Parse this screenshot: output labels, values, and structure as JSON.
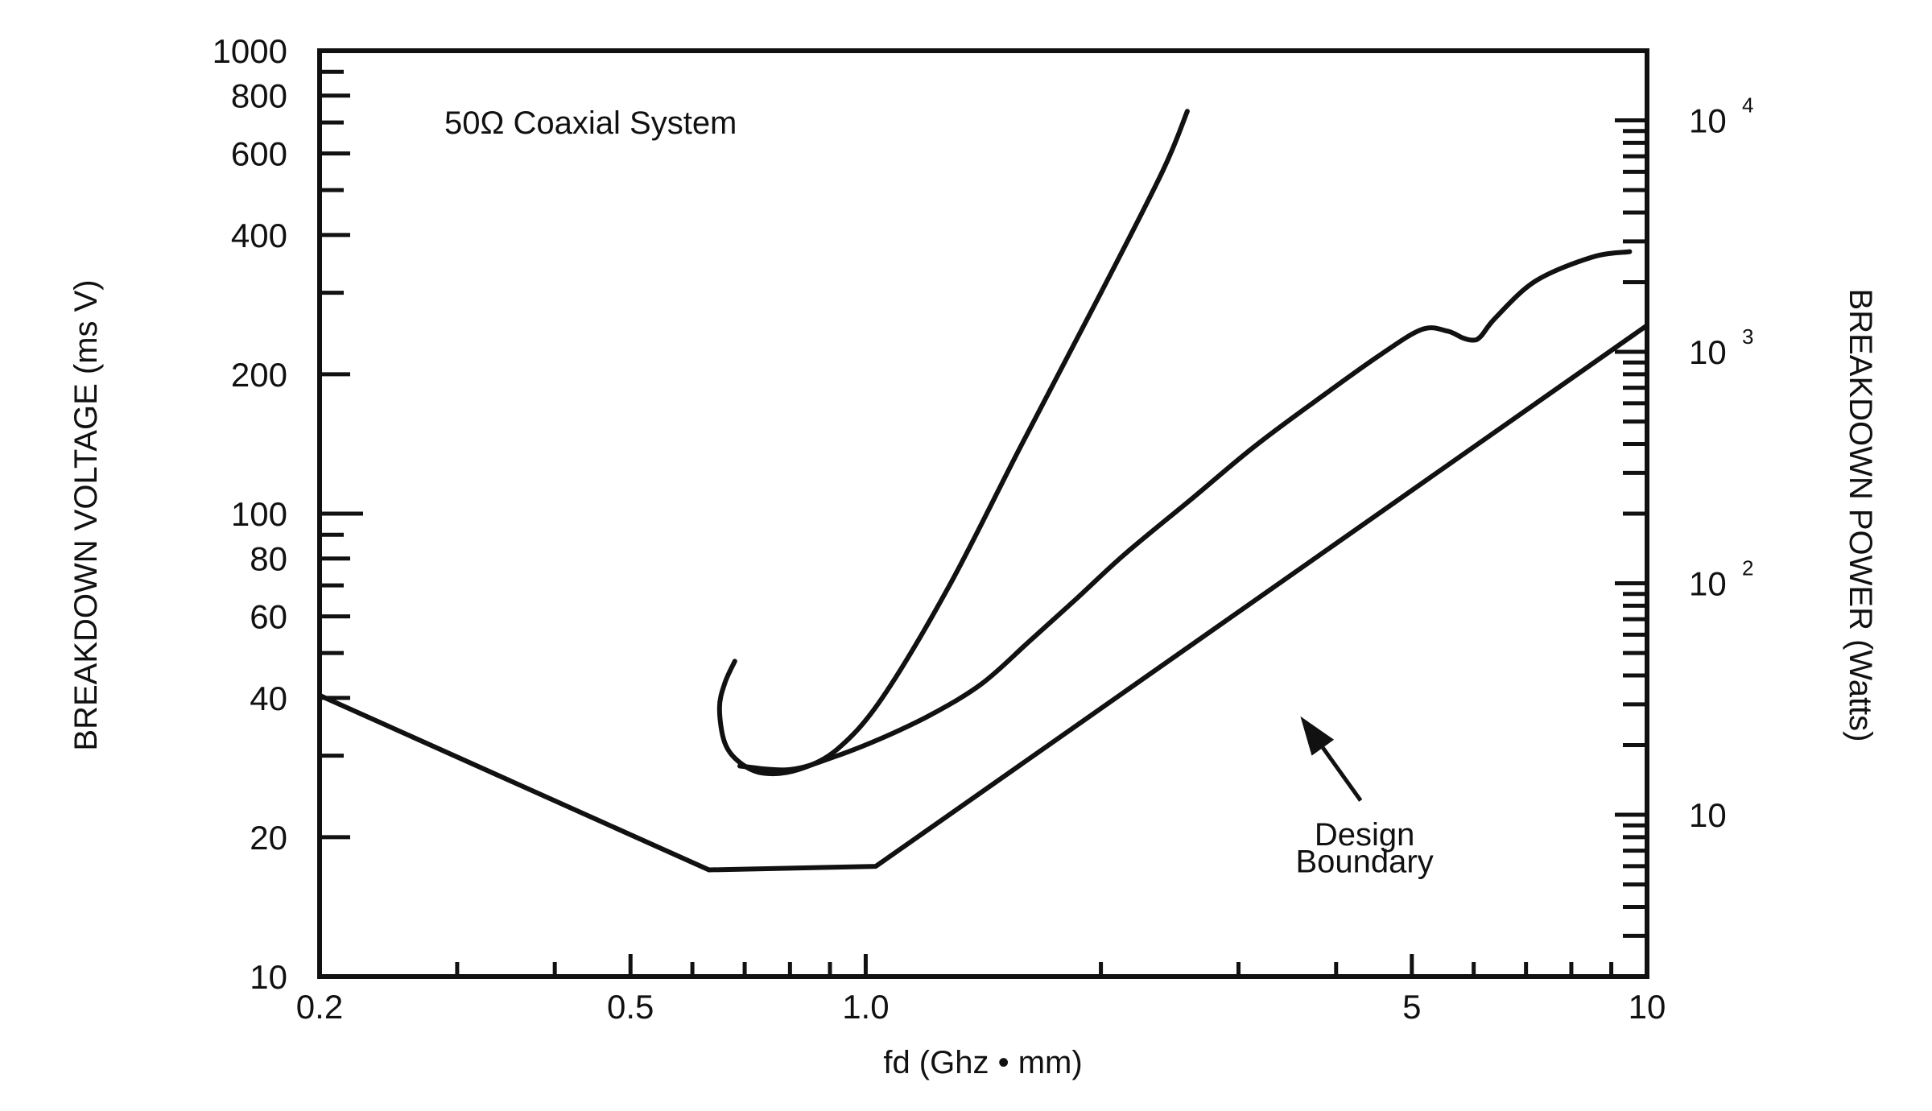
{
  "chart_data": {
    "type": "line",
    "title": "",
    "annotation": "50Ω  Coaxial System",
    "xlabel": "fd (Ghz • mm)",
    "ylabel": "BREAKDOWN VOLTAGE (ms V)",
    "y2label": "BREAKDOWN POWER (Watts)",
    "xscale": "log",
    "yscale": "log",
    "y2scale": "log",
    "xlim": [
      0.2,
      10
    ],
    "ylim": [
      10,
      1000
    ],
    "y2lim": [
      2,
      20000
    ],
    "x_ticks": [
      {
        "value": 0.2,
        "label": "0.2"
      },
      {
        "value": 0.5,
        "label": "0.5"
      },
      {
        "value": 1.0,
        "label": "1.0"
      },
      {
        "value": 5,
        "label": "5"
      },
      {
        "value": 10,
        "label": "10"
      }
    ],
    "x_minor_ticks": [
      0.3,
      0.4,
      0.6,
      0.7,
      0.8,
      0.9,
      2,
      3,
      4,
      6,
      7,
      8,
      9
    ],
    "y_ticks": [
      {
        "value": 10,
        "label": "10"
      },
      {
        "value": 20,
        "label": "20"
      },
      {
        "value": 40,
        "label": "40"
      },
      {
        "value": 60,
        "label": "60"
      },
      {
        "value": 80,
        "label": "80"
      },
      {
        "value": 100,
        "label": "100"
      },
      {
        "value": 200,
        "label": "200"
      },
      {
        "value": 400,
        "label": "400"
      },
      {
        "value": 600,
        "label": "600"
      },
      {
        "value": 800,
        "label": "800"
      },
      {
        "value": 1000,
        "label": "1000"
      }
    ],
    "y_minor_ticks": [
      30,
      50,
      70,
      90,
      300,
      500,
      700,
      900
    ],
    "y2_ticks": [
      {
        "value": 10,
        "base": "10",
        "exp": ""
      },
      {
        "value": 100,
        "base": "10",
        "exp": "2"
      },
      {
        "value": 1000,
        "base": "10",
        "exp": "3"
      },
      {
        "value": 10000,
        "base": "10",
        "exp": "4"
      }
    ],
    "y2_minor_ticks": [
      3,
      4,
      5,
      6,
      7,
      8,
      9,
      20,
      30,
      40,
      50,
      60,
      70,
      80,
      90,
      200,
      300,
      400,
      500,
      600,
      700,
      800,
      900,
      2000,
      3000,
      4000,
      5000,
      6000,
      7000,
      8000,
      9000
    ],
    "series": [
      {
        "x": [
          0.68,
          0.66,
          0.65,
          0.66,
          0.69,
          0.74,
          0.82,
          0.92,
          1.05,
          1.28,
          1.58,
          2.0,
          2.4,
          2.58
        ],
        "y": [
          48,
          43,
          38,
          32,
          29,
          27.5,
          28,
          31,
          40,
          70,
          140,
          300,
          550,
          740
        ]
      },
      {
        "x": [
          0.69,
          0.8,
          0.92,
          1.06,
          1.22,
          1.41,
          1.62,
          1.87,
          2.15,
          2.62,
          3.15,
          3.85,
          4.55,
          5.15,
          5.55,
          5.8,
          5.98,
          6.12,
          6.4,
          7.2,
          8.5,
          9.5
        ],
        "y": [
          28.5,
          28,
          30,
          33,
          37,
          43,
          53,
          66,
          82,
          108,
          140,
          180,
          220,
          250,
          248,
          240,
          237,
          241,
          265,
          318,
          358,
          368
        ]
      },
      {
        "name": "Design Boundary",
        "x": [
          0.2,
          0.63,
          1.03,
          10
        ],
        "y": [
          40.5,
          17,
          17.3,
          255
        ]
      }
    ],
    "annotations": [
      {
        "text": "Design",
        "x": 4.35,
        "y": 19.2
      },
      {
        "text": "Boundary",
        "x": 4.35,
        "y": 16.8
      }
    ],
    "arrow": {
      "from": {
        "x": 4.3,
        "y": 24
      },
      "to": {
        "x": 3.6,
        "y": 36.5
      }
    },
    "grid": false
  }
}
